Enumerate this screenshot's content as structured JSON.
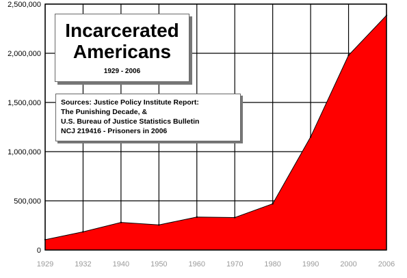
{
  "chart_data": {
    "type": "area",
    "title": [
      "Incarcerated",
      "Americans"
    ],
    "subtitle": "1929 - 2006",
    "sources": [
      "Sources: Justice Policy Institute Report:",
      "The Punishing Decade, &",
      "U.S. Bureau of Justice Statistics Bulletin",
      "NCJ 219416 - Prisoners in 2006"
    ],
    "x": [
      "1929",
      "1932",
      "1940",
      "1950",
      "1960",
      "1970",
      "1980",
      "1990",
      "2000",
      "2006"
    ],
    "values": [
      105000,
      185000,
      280000,
      255000,
      335000,
      330000,
      470000,
      1150000,
      1980000,
      2385000
    ],
    "y_ticks": [
      "0",
      "500,000",
      "1,000,000",
      "1,500,000",
      "2,000,000",
      "2,500,000"
    ],
    "ylim": [
      0,
      2500000
    ],
    "grid": true,
    "fill_color": "#ff0000",
    "line_color": "#000000"
  }
}
